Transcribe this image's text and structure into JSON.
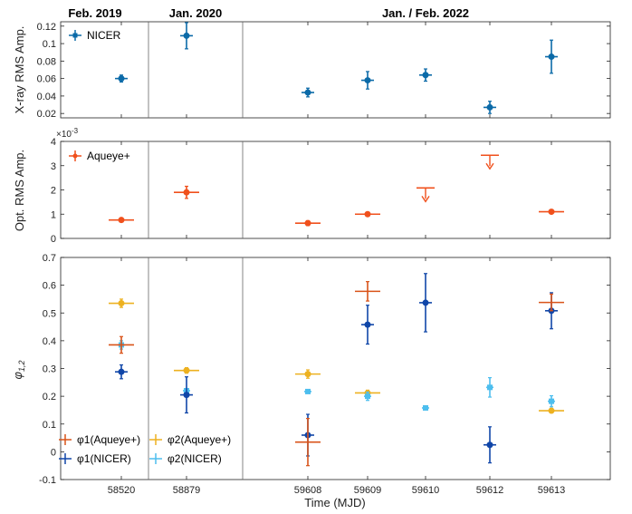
{
  "periods": [
    "Feb. 2019",
    "Jan. 2020",
    "Jan. / Feb. 2022"
  ],
  "x_axis": {
    "label": "Time (MJD)",
    "ticks": [
      "58520",
      "58879",
      "59608",
      "59609",
      "59610",
      "59612",
      "59613"
    ]
  },
  "colors": {
    "nicer": "#0b6aa8",
    "aqueye": "#f0501c",
    "phi1_aqueye": "#d95319",
    "phi1_nicer": "#1046a8",
    "phi2_aqueye": "#edb120",
    "phi2_nicer": "#4dbeee"
  },
  "chart_data": [
    {
      "type": "scatter",
      "panel": "xray",
      "ylabel": "X-ray RMS Amp.",
      "ylim": [
        0.015,
        0.125
      ],
      "yticks": [
        "0.02",
        "0.04",
        "0.06",
        "0.08",
        "0.1",
        "0.12"
      ],
      "series": [
        {
          "name": "NICER",
          "points": [
            {
              "x": "58520",
              "y": 0.06,
              "err": 0.004
            },
            {
              "x": "58879",
              "y": 0.109,
              "err": 0.015
            },
            {
              "x": "59608",
              "y": 0.044,
              "err": 0.005
            },
            {
              "x": "59609",
              "y": 0.058,
              "err": 0.01
            },
            {
              "x": "59610",
              "y": 0.064,
              "err": 0.007
            },
            {
              "x": "59612",
              "y": 0.027,
              "err": 0.007
            },
            {
              "x": "59613",
              "y": 0.085,
              "err": 0.019
            }
          ]
        }
      ]
    },
    {
      "type": "scatter",
      "panel": "optical",
      "ylabel": "Opt. RMS Amp.",
      "yscale_label": "×10",
      "yscale_exponent": "-3",
      "ylim": [
        0,
        0.004
      ],
      "yticks": [
        "0",
        "1",
        "2",
        "3",
        "4"
      ],
      "series": [
        {
          "name": "Aqueye+",
          "points": [
            {
              "x": "58520",
              "y": 0.00076,
              "err": 8e-05
            },
            {
              "x": "58879",
              "y": 0.0019,
              "err": 0.00025
            },
            {
              "x": "59608",
              "y": 0.00063,
              "err": 0.0001
            },
            {
              "x": "59609",
              "y": 0.001,
              "err": 8e-05
            },
            {
              "x": "59610",
              "y": 0.00208,
              "upper_limit": true
            },
            {
              "x": "59612",
              "y": 0.00343,
              "upper_limit": true
            },
            {
              "x": "59613",
              "y": 0.0011,
              "err": 8e-05
            }
          ]
        }
      ]
    },
    {
      "type": "scatter",
      "panel": "phase",
      "ylabel": "φ1,2",
      "ylim": [
        -0.1,
        0.7
      ],
      "yticks": [
        "-0.1",
        "0",
        "0.1",
        "0.2",
        "0.3",
        "0.4",
        "0.5",
        "0.6",
        "0.7"
      ],
      "series": [
        {
          "name": "φ1(Aqueye+)",
          "points": [
            {
              "x": "58520",
              "y": 0.385,
              "err": 0.03
            },
            {
              "x": "59608",
              "y": 0.035,
              "err": 0.085
            },
            {
              "x": "59609",
              "y": 0.578,
              "err": 0.035
            },
            {
              "x": "59613",
              "y": 0.538,
              "err": 0.03
            }
          ]
        },
        {
          "name": "φ1(NICER)",
          "points": [
            {
              "x": "58520",
              "y": 0.288,
              "err": 0.025
            },
            {
              "x": "58879",
              "y": 0.205,
              "err": 0.065
            },
            {
              "x": "59608",
              "y": 0.06,
              "err": 0.075
            },
            {
              "x": "59609",
              "y": 0.458,
              "err": 0.07
            },
            {
              "x": "59610",
              "y": 0.537,
              "err": 0.105
            },
            {
              "x": "59612",
              "y": 0.025,
              "err": 0.065
            },
            {
              "x": "59613",
              "y": 0.508,
              "err": 0.065
            }
          ]
        },
        {
          "name": "φ2(Aqueye+)",
          "points": [
            {
              "x": "58520",
              "y": 0.535,
              "err": 0.015
            },
            {
              "x": "58879",
              "y": 0.293,
              "err": 0.01
            },
            {
              "x": "59608",
              "y": 0.28,
              "err": 0.015
            },
            {
              "x": "59609",
              "y": 0.212,
              "err": 0.01
            },
            {
              "x": "59613",
              "y": 0.148,
              "err": 0.008
            }
          ]
        },
        {
          "name": "φ2(NICER)",
          "points": [
            {
              "x": "58520",
              "y": 0.385,
              "err": 0.015
            },
            {
              "x": "58879",
              "y": 0.22,
              "err": 0.008
            },
            {
              "x": "59608",
              "y": 0.217,
              "err": 0.005
            },
            {
              "x": "59609",
              "y": 0.2,
              "err": 0.015
            },
            {
              "x": "59610",
              "y": 0.158,
              "err": 0.007
            },
            {
              "x": "59612",
              "y": 0.232,
              "err": 0.035
            },
            {
              "x": "59613",
              "y": 0.182,
              "err": 0.02
            }
          ]
        }
      ]
    }
  ]
}
